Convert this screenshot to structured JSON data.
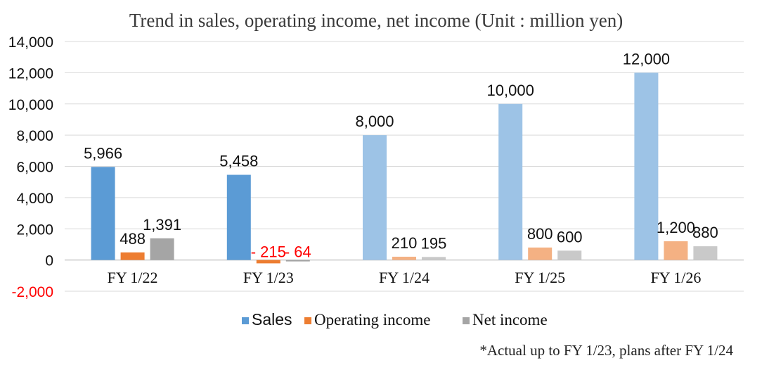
{
  "chart_data": {
    "type": "bar",
    "title": "Trend in sales, operating income, net income (Unit : million yen)",
    "categories": [
      "FY 1/22",
      "FY 1/23",
      "FY 1/24",
      "FY 1/25",
      "FY 1/26"
    ],
    "series": [
      {
        "name": "Sales",
        "values": [
          5966,
          5458,
          8000,
          10000,
          12000
        ],
        "labels": [
          "5,966",
          "5,458",
          "8,000",
          "10,000",
          "12,000"
        ],
        "colors": [
          "#5b9bd5",
          "#5b9bd5",
          "#9dc3e6",
          "#9dc3e6",
          "#9dc3e6"
        ]
      },
      {
        "name": "Operating income",
        "values": [
          488,
          -215,
          210,
          800,
          1200
        ],
        "labels": [
          "488",
          "- 215",
          "210",
          "800",
          "1,200"
        ],
        "colors": [
          "#ed7d31",
          "#ed7d31",
          "#f4b183",
          "#f4b183",
          "#f4b183"
        ]
      },
      {
        "name": "Net income",
        "values": [
          1391,
          -64,
          195,
          600,
          880
        ],
        "labels": [
          "1,391",
          "- 64",
          "195",
          "600",
          "880"
        ],
        "colors": [
          "#a5a5a5",
          "#a5a5a5",
          "#c9c9c9",
          "#c9c9c9",
          "#c9c9c9"
        ]
      }
    ],
    "legend_colors": [
      "#5b9bd5",
      "#ed7d31",
      "#a5a5a5"
    ],
    "ylim": [
      -2000,
      14000
    ],
    "yticks": [
      -2000,
      0,
      2000,
      4000,
      6000,
      8000,
      10000,
      12000,
      14000
    ],
    "ytick_labels": [
      "-2,000",
      "0",
      "2,000",
      "4,000",
      "6,000",
      "8,000",
      "10,000",
      "12,000",
      "14,000"
    ],
    "negative_label_color": "#ff0000",
    "grid": true,
    "legend_position": "bottom",
    "footnote": "*Actual up to FY 1/23, plans after FY 1/24"
  }
}
